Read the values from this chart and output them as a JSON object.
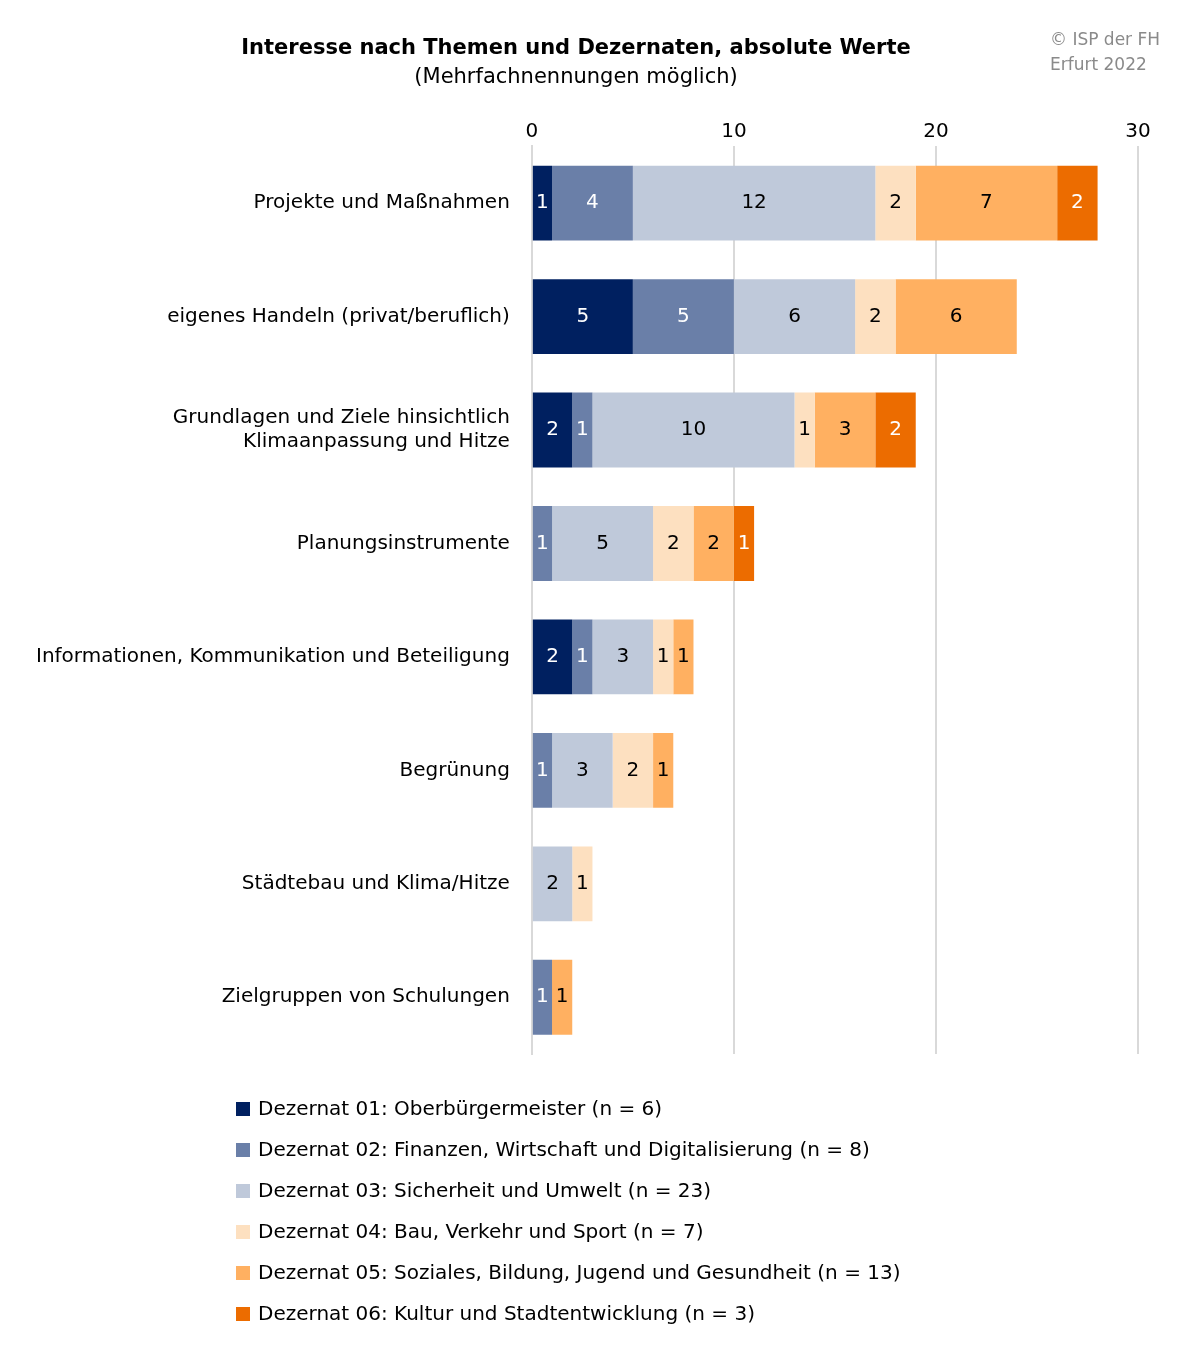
{
  "chart_data": {
    "type": "bar",
    "orientation": "horizontal",
    "stacked": true,
    "title": "Interesse nach Themen und Dezernaten, absolute Werte",
    "subtitle": "(Mehrfachnennungen möglich)",
    "annotations": [
      "© ISP der FH Erfurt 2022"
    ],
    "categories": [
      "Projekte und Maßnahmen",
      "eigenes Handeln (privat/beruflich)",
      "Grundlagen und Ziele hinsichtlich Klimaanpassung und Hitze",
      "Planungsinstrumente",
      "Informationen, Kommunikation und Beteiligung",
      "Begrünung",
      "Städtebau und Klima/Hitze",
      "Zielgruppen von Schulungen"
    ],
    "series": [
      {
        "name": "Dezernat 01: Oberbürgermeister (n = 6)",
        "color": "#002060",
        "values": [
          1,
          5,
          2,
          null,
          2,
          null,
          null,
          null
        ]
      },
      {
        "name": "Dezernat 02: Finanzen, Wirtschaft und Digitalisierung (n = 8)",
        "color": "#6a7fa8",
        "values": [
          4,
          5,
          1,
          1,
          1,
          1,
          null,
          1
        ]
      },
      {
        "name": "Dezernat 03: Sicherheit und Umwelt (n = 23)",
        "color": "#bfc9da",
        "values": [
          12,
          6,
          10,
          5,
          3,
          3,
          2,
          null
        ]
      },
      {
        "name": "Dezernat 04: Bau, Verkehr und Sport (n = 7)",
        "color": "#fde0c0",
        "values": [
          2,
          2,
          1,
          2,
          1,
          2,
          1,
          null
        ]
      },
      {
        "name": "Dezernat 05: Soziales, Bildung, Jugend und Gesundheit (n = 13)",
        "color": "#ffb061",
        "values": [
          7,
          6,
          3,
          2,
          1,
          1,
          null,
          1
        ]
      },
      {
        "name": "Dezernat 06: Kultur und Stadtentwicklung (n = 3)",
        "color": "#ec6c00",
        "values": [
          2,
          null,
          2,
          1,
          null,
          null,
          null,
          null
        ]
      }
    ],
    "xlim": [
      0,
      30
    ],
    "xticks": [
      0,
      10,
      20,
      30
    ],
    "grid": "x",
    "data_labels": true,
    "legend": "bottom"
  }
}
